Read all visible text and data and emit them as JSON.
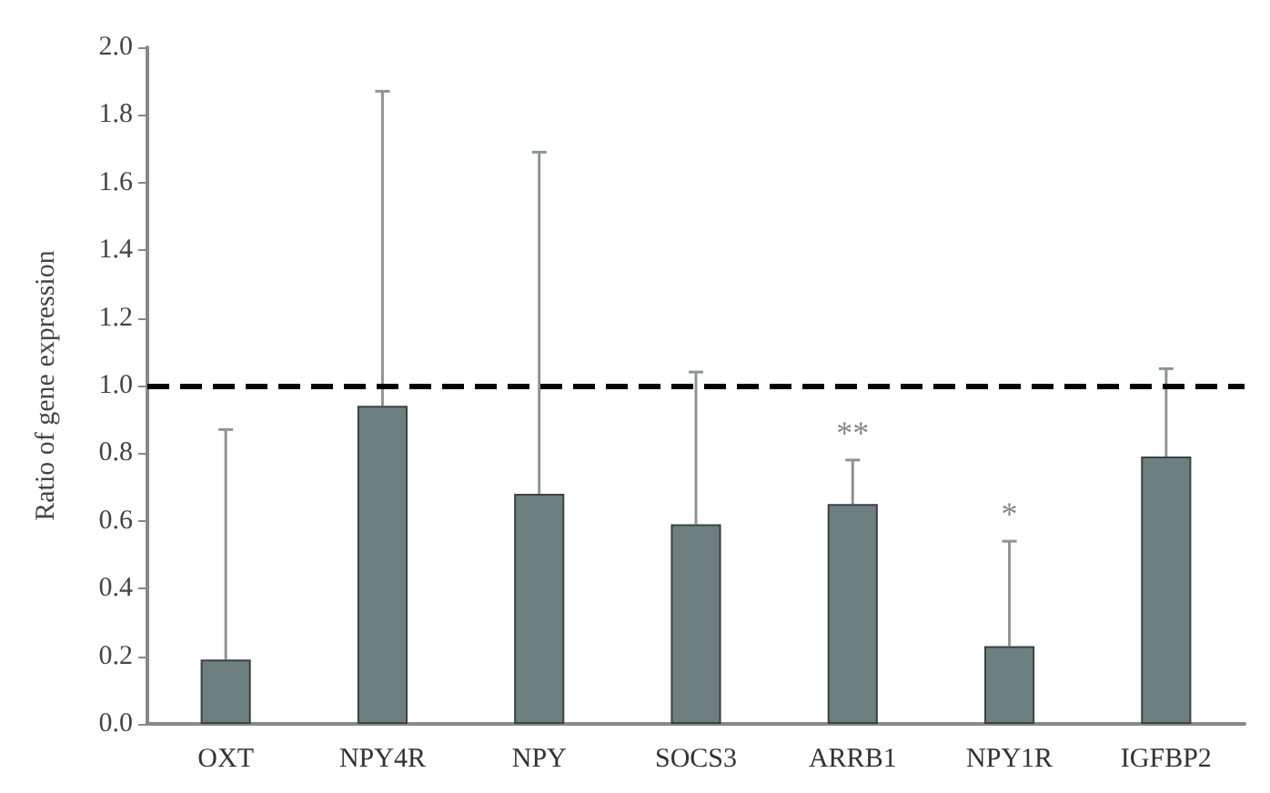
{
  "chart_data": {
    "type": "bar",
    "ylabel": "Ratio of gene expression",
    "categories": [
      "OXT",
      "NPY4R",
      "NPY",
      "SOCS3",
      "ARRB1",
      "NPY1R",
      "IGFBP2"
    ],
    "values": [
      0.19,
      0.94,
      0.68,
      0.59,
      0.65,
      0.23,
      0.79
    ],
    "errors": [
      [
        0.19,
        0.87
      ],
      [
        0.94,
        1.87
      ],
      [
        0.68,
        1.69
      ],
      [
        0.59,
        1.04
      ],
      [
        0.65,
        0.78
      ],
      [
        0.23,
        0.54
      ],
      [
        0.79,
        1.05
      ]
    ],
    "color": "#6e7f80",
    "ylim": [
      0,
      2
    ],
    "yticks": [
      {
        "value": 0,
        "label": "0.0"
      },
      {
        "value": 0.2,
        "label": "0.2"
      },
      {
        "value": 0.4,
        "label": "0.4"
      },
      {
        "value": 0.6,
        "label": "0.6"
      },
      {
        "value": 0.8,
        "label": "0.8"
      },
      {
        "value": 1,
        "label": "1.0"
      },
      {
        "value": 1.2,
        "label": "1.2"
      },
      {
        "value": 1.4,
        "label": "1.4"
      },
      {
        "value": 1.6,
        "label": "1.6"
      },
      {
        "value": 1.8,
        "label": "1.8"
      },
      {
        "value": 2,
        "label": "2.0"
      }
    ],
    "ref_lines": [
      {
        "axis": "y",
        "value": 1,
        "color": "#000000",
        "line_style": "dashed"
      }
    ],
    "annotations": [
      {
        "text": "**",
        "x": "ARRB1",
        "y": 0.78
      },
      {
        "text": "*",
        "x": "NPY1R",
        "y": 0.54
      }
    ],
    "grid": false
  }
}
